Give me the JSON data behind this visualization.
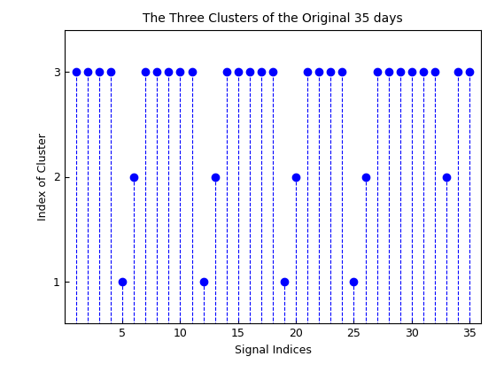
{
  "title": "The Three Clusters of the Original 35 days",
  "xlabel": "Signal Indices",
  "ylabel": "Index of Cluster",
  "x": [
    1,
    2,
    3,
    4,
    5,
    6,
    7,
    8,
    9,
    10,
    11,
    12,
    13,
    14,
    15,
    16,
    17,
    18,
    19,
    20,
    21,
    22,
    23,
    24,
    25,
    26,
    27,
    28,
    29,
    30,
    31,
    32,
    33,
    34,
    35
  ],
  "y": [
    3,
    3,
    3,
    3,
    1,
    2,
    3,
    3,
    3,
    3,
    3,
    1,
    2,
    3,
    3,
    3,
    3,
    3,
    1,
    2,
    3,
    3,
    3,
    3,
    1,
    2,
    3,
    3,
    3,
    3,
    3,
    3,
    2,
    3,
    3
  ],
  "line_color": "#0000FF",
  "marker_color": "#0000FF",
  "marker_size": 6,
  "line_style": "--",
  "line_width": 0.8,
  "xlim": [
    0,
    36
  ],
  "ylim": [
    0.6,
    3.4
  ],
  "yticks": [
    1,
    2,
    3
  ],
  "xticks": [
    5,
    10,
    15,
    20,
    25,
    30,
    35
  ],
  "figsize": [
    5.6,
    4.2
  ],
  "dpi": 100,
  "title_fontsize": 10,
  "label_fontsize": 9,
  "tick_fontsize": 9
}
